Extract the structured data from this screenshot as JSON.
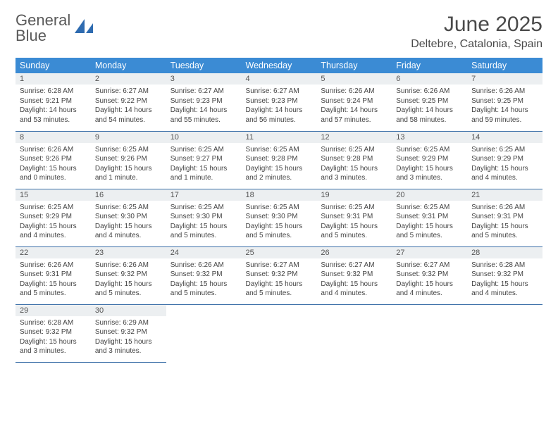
{
  "brand": {
    "word1": "General",
    "word2": "Blue"
  },
  "title": "June 2025",
  "location": "Deltebre, Catalonia, Spain",
  "colors": {
    "header_bg": "#3b8bd4",
    "header_text": "#ffffff",
    "daynum_bg": "#eceff1",
    "row_border": "#3b6fa8",
    "brand_gray": "#5a5a5a",
    "brand_blue": "#3b7fc4"
  },
  "typography": {
    "title_fontsize": 30,
    "location_fontsize": 16,
    "header_fontsize": 12.5,
    "daynum_fontsize": 11,
    "body_fontsize": 10
  },
  "weekdays": [
    "Sunday",
    "Monday",
    "Tuesday",
    "Wednesday",
    "Thursday",
    "Friday",
    "Saturday"
  ],
  "weeks": [
    [
      {
        "n": "1",
        "sunrise": "6:28 AM",
        "sunset": "9:21 PM",
        "daylight": "14 hours and 53 minutes."
      },
      {
        "n": "2",
        "sunrise": "6:27 AM",
        "sunset": "9:22 PM",
        "daylight": "14 hours and 54 minutes."
      },
      {
        "n": "3",
        "sunrise": "6:27 AM",
        "sunset": "9:23 PM",
        "daylight": "14 hours and 55 minutes."
      },
      {
        "n": "4",
        "sunrise": "6:27 AM",
        "sunset": "9:23 PM",
        "daylight": "14 hours and 56 minutes."
      },
      {
        "n": "5",
        "sunrise": "6:26 AM",
        "sunset": "9:24 PM",
        "daylight": "14 hours and 57 minutes."
      },
      {
        "n": "6",
        "sunrise": "6:26 AM",
        "sunset": "9:25 PM",
        "daylight": "14 hours and 58 minutes."
      },
      {
        "n": "7",
        "sunrise": "6:26 AM",
        "sunset": "9:25 PM",
        "daylight": "14 hours and 59 minutes."
      }
    ],
    [
      {
        "n": "8",
        "sunrise": "6:26 AM",
        "sunset": "9:26 PM",
        "daylight": "15 hours and 0 minutes."
      },
      {
        "n": "9",
        "sunrise": "6:25 AM",
        "sunset": "9:26 PM",
        "daylight": "15 hours and 1 minute."
      },
      {
        "n": "10",
        "sunrise": "6:25 AM",
        "sunset": "9:27 PM",
        "daylight": "15 hours and 1 minute."
      },
      {
        "n": "11",
        "sunrise": "6:25 AM",
        "sunset": "9:28 PM",
        "daylight": "15 hours and 2 minutes."
      },
      {
        "n": "12",
        "sunrise": "6:25 AM",
        "sunset": "9:28 PM",
        "daylight": "15 hours and 3 minutes."
      },
      {
        "n": "13",
        "sunrise": "6:25 AM",
        "sunset": "9:29 PM",
        "daylight": "15 hours and 3 minutes."
      },
      {
        "n": "14",
        "sunrise": "6:25 AM",
        "sunset": "9:29 PM",
        "daylight": "15 hours and 4 minutes."
      }
    ],
    [
      {
        "n": "15",
        "sunrise": "6:25 AM",
        "sunset": "9:29 PM",
        "daylight": "15 hours and 4 minutes."
      },
      {
        "n": "16",
        "sunrise": "6:25 AM",
        "sunset": "9:30 PM",
        "daylight": "15 hours and 4 minutes."
      },
      {
        "n": "17",
        "sunrise": "6:25 AM",
        "sunset": "9:30 PM",
        "daylight": "15 hours and 5 minutes."
      },
      {
        "n": "18",
        "sunrise": "6:25 AM",
        "sunset": "9:30 PM",
        "daylight": "15 hours and 5 minutes."
      },
      {
        "n": "19",
        "sunrise": "6:25 AM",
        "sunset": "9:31 PM",
        "daylight": "15 hours and 5 minutes."
      },
      {
        "n": "20",
        "sunrise": "6:25 AM",
        "sunset": "9:31 PM",
        "daylight": "15 hours and 5 minutes."
      },
      {
        "n": "21",
        "sunrise": "6:26 AM",
        "sunset": "9:31 PM",
        "daylight": "15 hours and 5 minutes."
      }
    ],
    [
      {
        "n": "22",
        "sunrise": "6:26 AM",
        "sunset": "9:31 PM",
        "daylight": "15 hours and 5 minutes."
      },
      {
        "n": "23",
        "sunrise": "6:26 AM",
        "sunset": "9:32 PM",
        "daylight": "15 hours and 5 minutes."
      },
      {
        "n": "24",
        "sunrise": "6:26 AM",
        "sunset": "9:32 PM",
        "daylight": "15 hours and 5 minutes."
      },
      {
        "n": "25",
        "sunrise": "6:27 AM",
        "sunset": "9:32 PM",
        "daylight": "15 hours and 5 minutes."
      },
      {
        "n": "26",
        "sunrise": "6:27 AM",
        "sunset": "9:32 PM",
        "daylight": "15 hours and 4 minutes."
      },
      {
        "n": "27",
        "sunrise": "6:27 AM",
        "sunset": "9:32 PM",
        "daylight": "15 hours and 4 minutes."
      },
      {
        "n": "28",
        "sunrise": "6:28 AM",
        "sunset": "9:32 PM",
        "daylight": "15 hours and 4 minutes."
      }
    ],
    [
      {
        "n": "29",
        "sunrise": "6:28 AM",
        "sunset": "9:32 PM",
        "daylight": "15 hours and 3 minutes."
      },
      {
        "n": "30",
        "sunrise": "6:29 AM",
        "sunset": "9:32 PM",
        "daylight": "15 hours and 3 minutes."
      },
      null,
      null,
      null,
      null,
      null
    ]
  ],
  "labels": {
    "sunrise": "Sunrise: ",
    "sunset": "Sunset: ",
    "daylight": "Daylight: "
  }
}
